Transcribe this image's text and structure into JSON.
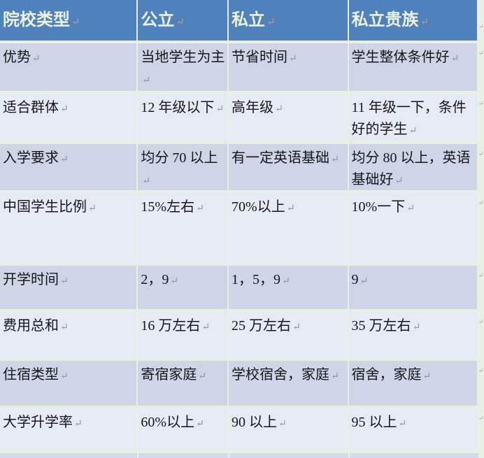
{
  "document": {
    "type": "word-table",
    "colors": {
      "header_bg": "#4F81BD",
      "header_text": "#EBF3DF",
      "band_dark": "#CDD5E6",
      "band_light": "#E6EAF3",
      "page_background": "#E7F0E2",
      "body_text": "#16161B",
      "formatting_mark": "#8E959E"
    }
  },
  "marks": {
    "cell_end": "↵",
    "row_end": "↵"
  },
  "table": {
    "headers": [
      "院校类型",
      "公立",
      "私立",
      "私立贵族"
    ],
    "rows": [
      {
        "label": "优势",
        "values": [
          "当地学生为主",
          "节省时间",
          "学生整体条件好"
        ]
      },
      {
        "label": "适合群体",
        "values": [
          "12 年级以下",
          "高年级",
          "11 年级一下，条件好的学生"
        ]
      },
      {
        "label": "入学要求",
        "values": [
          "均分 70 以上",
          "有一定英语基础",
          "均分 80 以上，英语基础好"
        ]
      },
      {
        "label": "中国学生比例",
        "values": [
          "15%左右",
          "70%以上",
          "10%一下"
        ]
      },
      {
        "label": "开学时间",
        "values": [
          "2，9",
          "1，5，9",
          "9"
        ]
      },
      {
        "label": "费用总和",
        "values": [
          "16 万左右",
          "25 万左右",
          "35 万左右"
        ]
      },
      {
        "label": "住宿类型",
        "values": [
          "寄宿家庭",
          "学校宿舍，家庭",
          "宿舍，家庭"
        ]
      },
      {
        "label": "大学升学率",
        "values": [
          "60%以上",
          "90 以上",
          "95 以上"
        ]
      }
    ]
  }
}
